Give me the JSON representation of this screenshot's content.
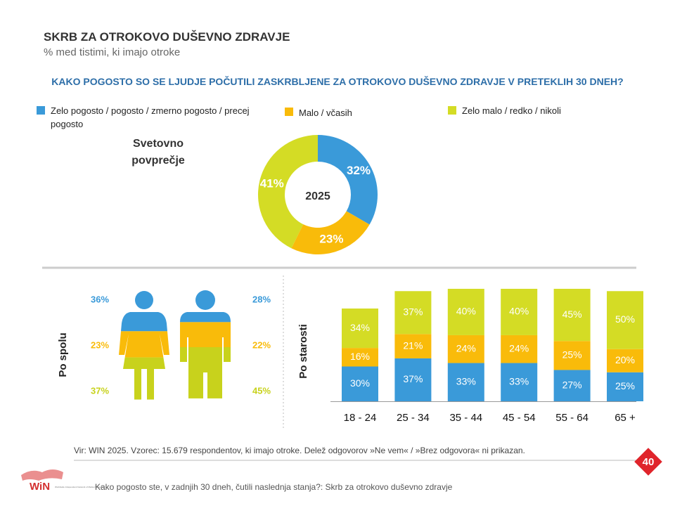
{
  "header": {
    "title": "SKRB ZA OTROKOVO DUŠEVNO ZDRAVJE",
    "subtitle": "% med tistimi, ki imajo otroke",
    "question": "KAKO POGOSTO SO SE LJUDJE POČUTILI ZASKRBLJENE ZA OTROKOVO DUŠEVNO ZDRAVJE V PRETEKLIH 30 DNEH?"
  },
  "chart_data": [
    {
      "type": "pie",
      "donut": true,
      "title": "Svetovno povprečje",
      "center_label": "2025",
      "categories": [
        "Zelo pogosto / pogosto / zmerno pogosto / precej pogosto",
        "Malo / včasih",
        "Zelo malo / redko / nikoli"
      ],
      "values": [
        32,
        23,
        41
      ],
      "value_labels": [
        "32%",
        "23%",
        "41%"
      ],
      "colors": [
        "#3a9ad9",
        "#f9bb0a",
        "#d4dc25"
      ]
    },
    {
      "type": "figures",
      "title": "Po spolu",
      "categories": [
        null,
        null
      ],
      "series": [
        {
          "color": "#3a9ad9",
          "values": [
            36,
            28
          ],
          "value_labels": [
            "36%",
            "28%"
          ]
        },
        {
          "color": "#f9bb0a",
          "values": [
            23,
            22
          ],
          "value_labels": [
            "23%",
            "22%"
          ]
        },
        {
          "color": "#c8d21c",
          "values": [
            37,
            45
          ],
          "value_labels": [
            "37%",
            "45%"
          ]
        }
      ]
    },
    {
      "type": "bar",
      "stacked": true,
      "title": "Po starosti",
      "categories": [
        "18 - 24",
        "25 - 34",
        "35 - 44",
        "45 - 54",
        "55 - 64",
        "65 +"
      ],
      "series": [
        {
          "color": "#3a9ad9",
          "values": [
            30,
            37,
            33,
            33,
            27,
            25
          ],
          "value_labels": [
            "30%",
            "37%",
            "33%",
            "33%",
            "27%",
            "25%"
          ]
        },
        {
          "color": "#f9bb0a",
          "values": [
            16,
            21,
            24,
            24,
            25,
            20
          ],
          "value_labels": [
            "16%",
            "21%",
            "24%",
            "24%",
            "25%",
            "20%"
          ]
        },
        {
          "color": "#d4dc25",
          "values": [
            34,
            37,
            40,
            40,
            45,
            50
          ],
          "value_labels": [
            "34%",
            "37%",
            "40%",
            "40%",
            "45%",
            "50%"
          ]
        }
      ]
    }
  ],
  "footer": {
    "source": "Vir: WIN 2025.  Vzorec: 15.679  respondentov, ki imajo otroke. Delež odgovorov »Ne vem« / »Brez odgovora« ni prikazan.",
    "page_number": "40",
    "logo": "WiN",
    "logo_caption": "Worldwide Independent Network of Market Research",
    "question_text": "Kako pogosto ste, v zadnjih 30 dneh, čutili naslednja stanja?: Skrb za otrokovo duševno zdravje"
  }
}
